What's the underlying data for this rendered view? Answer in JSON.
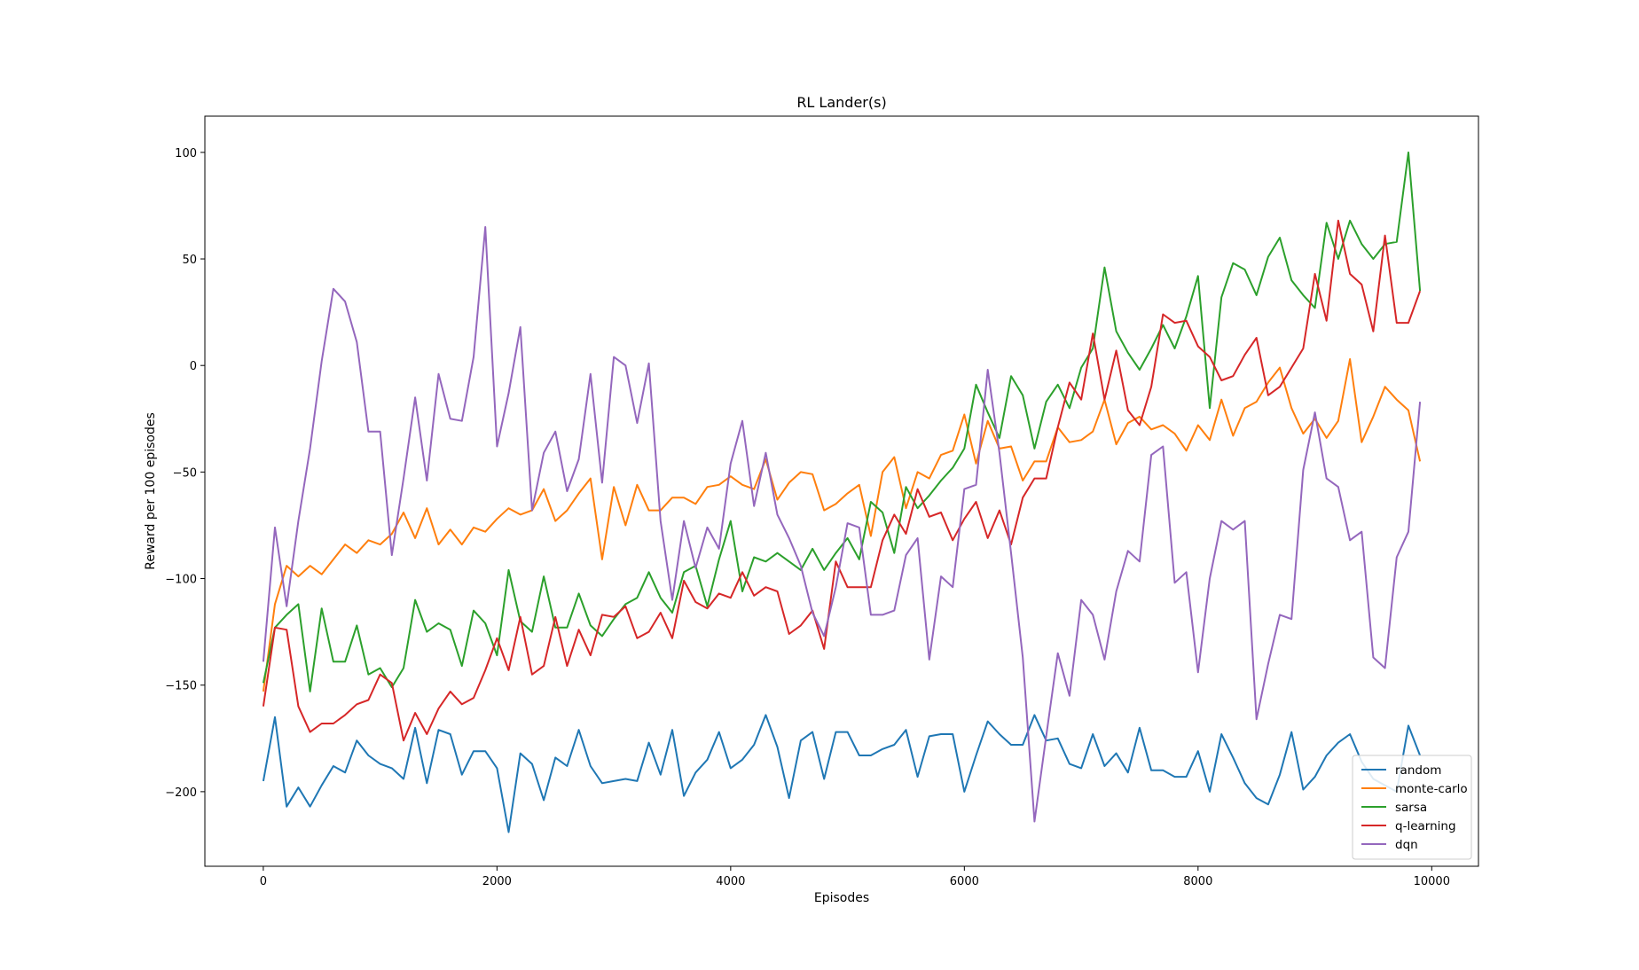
{
  "chart_data": {
    "type": "line",
    "title": "RL Lander(s)",
    "xlabel": "Episodes",
    "ylabel": "Reward per 100 episodes",
    "xlim": [
      -500,
      10400
    ],
    "ylim": [
      -235,
      117
    ],
    "xticks": [
      0,
      2000,
      4000,
      6000,
      8000,
      10000
    ],
    "yticks": [
      -200,
      -150,
      -100,
      -50,
      0,
      50,
      100
    ],
    "grid": false,
    "legend_position": "bottom-right",
    "x": [
      0,
      100,
      200,
      300,
      400,
      500,
      600,
      700,
      800,
      900,
      1000,
      1100,
      1200,
      1300,
      1400,
      1500,
      1600,
      1700,
      1800,
      1900,
      2000,
      2100,
      2200,
      2300,
      2400,
      2500,
      2600,
      2700,
      2800,
      2900,
      3000,
      3100,
      3200,
      3300,
      3400,
      3500,
      3600,
      3700,
      3800,
      3900,
      4000,
      4100,
      4200,
      4300,
      4400,
      4500,
      4600,
      4700,
      4800,
      4900,
      5000,
      5100,
      5200,
      5300,
      5400,
      5500,
      5600,
      5700,
      5800,
      5900,
      6000,
      6100,
      6200,
      6300,
      6400,
      6500,
      6600,
      6700,
      6800,
      6900,
      7000,
      7100,
      7200,
      7300,
      7400,
      7500,
      7600,
      7700,
      7800,
      7900,
      8000,
      8100,
      8200,
      8300,
      8400,
      8500,
      8600,
      8700,
      8800,
      8900,
      9000,
      9100,
      9200,
      9300,
      9400,
      9500,
      9600,
      9700,
      9800,
      9900
    ],
    "series": [
      {
        "name": "random",
        "color": "#1f77b4",
        "values": [
          -195,
          -165,
          -207,
          -198,
          -207,
          -197,
          -188,
          -191,
          -176,
          -183,
          -187,
          -189,
          -194,
          -170,
          -196,
          -171,
          -173,
          -192,
          -181,
          -181,
          -189,
          -219,
          -182,
          -187,
          -204,
          -184,
          -188,
          -171,
          -188,
          -196,
          -195,
          -194,
          -195,
          -177,
          -192,
          -171,
          -202,
          -191,
          -185,
          -172,
          -189,
          -185,
          -178,
          -164,
          -179,
          -203,
          -176,
          -172,
          -194,
          -172,
          -172,
          -183,
          -183,
          -180,
          -178,
          -171,
          -193,
          -174,
          -173,
          -173,
          -200,
          -183,
          -167,
          -173,
          -178,
          -178,
          -164,
          -176,
          -175,
          -187,
          -189,
          -173,
          -188,
          -182,
          -191,
          -170,
          -190,
          -190,
          -193,
          -193,
          -181,
          -200,
          -173,
          -184,
          -196,
          -203,
          -206,
          -192,
          -172,
          -199,
          -193,
          -183,
          -177,
          -173,
          -186,
          -194,
          -197,
          -200,
          -169,
          -183
        ]
      },
      {
        "name": "monte-carlo",
        "color": "#ff7f0e",
        "values": [
          -153,
          -112,
          -94,
          -99,
          -94,
          -98,
          -91,
          -84,
          -88,
          -82,
          -84,
          -79,
          -69,
          -81,
          -67,
          -84,
          -77,
          -84,
          -76,
          -78,
          -72,
          -67,
          -70,
          -68,
          -58,
          -73,
          -68,
          -60,
          -53,
          -91,
          -57,
          -75,
          -56,
          -68,
          -68,
          -62,
          -62,
          -65,
          -57,
          -56,
          -52,
          -56,
          -58,
          -44,
          -63,
          -55,
          -50,
          -51,
          -68,
          -65,
          -60,
          -56,
          -80,
          -50,
          -43,
          -67,
          -50,
          -53,
          -42,
          -40,
          -23,
          -46,
          -26,
          -39,
          -38,
          -54,
          -45,
          -45,
          -29,
          -36,
          -35,
          -31,
          -16,
          -37,
          -27,
          -24,
          -30,
          -28,
          -32,
          -40,
          -28,
          -35,
          -16,
          -33,
          -20,
          -17,
          -8,
          -1,
          -20,
          -32,
          -25,
          -34,
          -26,
          3,
          -36,
          -24,
          -10,
          -16,
          -21,
          -45
        ]
      },
      {
        "name": "sarsa",
        "color": "#2ca02c",
        "values": [
          -149,
          -123,
          -117,
          -112,
          -153,
          -114,
          -139,
          -139,
          -122,
          -145,
          -142,
          -151,
          -142,
          -110,
          -125,
          -121,
          -124,
          -141,
          -115,
          -121,
          -136,
          -96,
          -120,
          -125,
          -99,
          -123,
          -123,
          -107,
          -122,
          -127,
          -119,
          -112,
          -109,
          -97,
          -109,
          -116,
          -97,
          -94,
          -113,
          -91,
          -73,
          -106,
          -90,
          -92,
          -88,
          -92,
          -96,
          -86,
          -96,
          -88,
          -81,
          -91,
          -64,
          -69,
          -88,
          -57,
          -67,
          -61,
          -54,
          -48,
          -39,
          -9,
          -22,
          -34,
          -5,
          -14,
          -39,
          -17,
          -9,
          -20,
          -1,
          8,
          46,
          16,
          6,
          -2,
          8,
          19,
          8,
          23,
          42,
          -20,
          32,
          48,
          45,
          33,
          51,
          60,
          40,
          33,
          27,
          67,
          50,
          68,
          57,
          50,
          57,
          58,
          100,
          35
        ]
      },
      {
        "name": "q-learning",
        "color": "#d62728",
        "values": [
          -160,
          -123,
          -124,
          -160,
          -172,
          -168,
          -168,
          -164,
          -159,
          -157,
          -145,
          -149,
          -176,
          -163,
          -173,
          -161,
          -153,
          -159,
          -156,
          -143,
          -128,
          -143,
          -118,
          -145,
          -141,
          -118,
          -141,
          -124,
          -136,
          -117,
          -118,
          -113,
          -128,
          -125,
          -116,
          -128,
          -101,
          -111,
          -114,
          -107,
          -109,
          -97,
          -108,
          -104,
          -106,
          -126,
          -122,
          -115,
          -133,
          -92,
          -104,
          -104,
          -104,
          -82,
          -70,
          -79,
          -58,
          -71,
          -69,
          -82,
          -72,
          -64,
          -81,
          -68,
          -84,
          -62,
          -53,
          -53,
          -29,
          -8,
          -16,
          15,
          -16,
          7,
          -21,
          -28,
          -10,
          24,
          20,
          21,
          9,
          4,
          -7,
          -5,
          5,
          13,
          -14,
          -10,
          -1,
          8,
          43,
          21,
          68,
          43,
          38,
          16,
          61,
          20,
          20,
          35
        ]
      },
      {
        "name": "dqn",
        "color": "#9467bd",
        "values": [
          -139,
          -76,
          -113,
          -73,
          -39,
          2,
          36,
          30,
          11,
          -31,
          -31,
          -89,
          -53,
          -15,
          -54,
          -4,
          -25,
          -26,
          4,
          65,
          -38,
          -13,
          18,
          -68,
          -41,
          -31,
          -59,
          -44,
          -4,
          -55,
          4,
          0,
          -27,
          1,
          -73,
          -110,
          -73,
          -95,
          -76,
          -86,
          -46,
          -26,
          -66,
          -41,
          -70,
          -81,
          -94,
          -116,
          -127,
          -104,
          -74,
          -76,
          -117,
          -117,
          -115,
          -89,
          -81,
          -138,
          -99,
          -104,
          -58,
          -56,
          -2,
          -41,
          -88,
          -137,
          -214,
          -174,
          -135,
          -155,
          -110,
          -117,
          -138,
          -106,
          -87,
          -92,
          -42,
          -38,
          -102,
          -97,
          -144,
          -100,
          -73,
          -77,
          -73,
          -166,
          -140,
          -117,
          -119,
          -49,
          -22,
          -53,
          -57,
          -82,
          -78,
          -137,
          -142,
          -90,
          -78,
          -17
        ]
      }
    ]
  }
}
